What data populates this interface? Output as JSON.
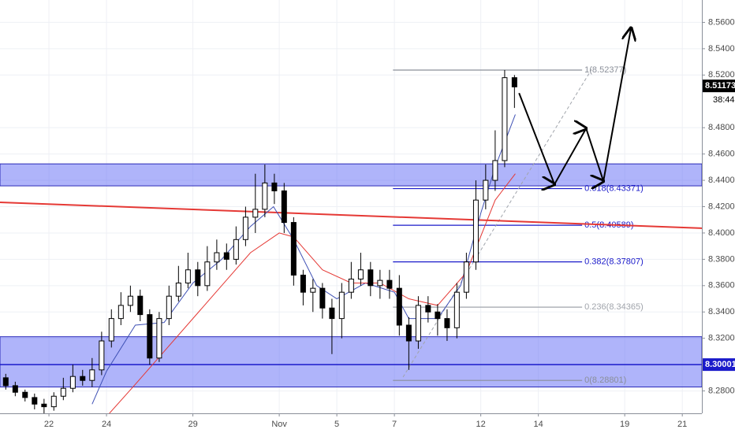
{
  "chart_data": {
    "type": "candlestick",
    "x": [
      -1.5,
      -1.17,
      -0.83,
      -0.5,
      -0.17,
      0.17,
      0.5,
      0.83,
      1.17,
      1.5,
      1.83,
      2.17,
      2.5,
      2.83,
      3.17,
      3.5,
      3.83,
      4.17,
      4.5,
      4.83,
      5.17,
      5.5,
      5.83,
      6.17,
      6.5,
      6.83,
      7.17,
      7.5,
      7.83,
      8.17,
      8.5,
      8.83,
      9.17,
      9.5,
      9.83,
      10.17,
      10.5,
      10.83,
      11.17,
      11.5,
      11.83,
      12.17,
      12.5,
      12.83,
      13.17,
      13.5,
      13.83,
      14.17,
      14.5,
      14.83,
      15.17,
      15.5,
      15.83,
      16.17
    ],
    "open": [
      8.29,
      8.284,
      8.279,
      8.275,
      8.27,
      8.268,
      8.276,
      8.282,
      8.291,
      8.288,
      8.296,
      8.318,
      8.335,
      8.345,
      8.352,
      8.338,
      8.305,
      8.335,
      8.352,
      8.362,
      8.372,
      8.36,
      8.378,
      8.385,
      8.38,
      8.395,
      8.412,
      8.418,
      8.438,
      8.432,
      8.408,
      8.368,
      8.355,
      8.358,
      8.343,
      8.335,
      8.355,
      8.365,
      8.372,
      8.36,
      8.364,
      8.358,
      8.33,
      8.318,
      8.345,
      8.34,
      8.335,
      8.328,
      8.355,
      8.378,
      8.425,
      8.44,
      8.455,
      8.518
    ],
    "high": [
      8.293,
      8.287,
      8.281,
      8.278,
      8.274,
      8.279,
      8.29,
      8.3,
      8.296,
      8.305,
      8.325,
      8.342,
      8.355,
      8.36,
      8.357,
      8.342,
      8.34,
      8.36,
      8.375,
      8.385,
      8.378,
      8.39,
      8.395,
      8.392,
      8.405,
      8.42,
      8.445,
      8.452,
      8.445,
      8.438,
      8.412,
      8.372,
      8.365,
      8.362,
      8.35,
      8.362,
      8.378,
      8.385,
      8.378,
      8.372,
      8.372,
      8.368,
      8.336,
      8.352,
      8.352,
      8.346,
      8.342,
      8.362,
      8.385,
      8.44,
      8.452,
      8.478,
      8.5238,
      8.52
    ],
    "low": [
      8.281,
      8.276,
      8.272,
      8.266,
      8.263,
      8.265,
      8.273,
      8.279,
      8.284,
      8.283,
      8.292,
      8.313,
      8.33,
      8.34,
      8.333,
      8.3,
      8.302,
      8.33,
      8.348,
      8.358,
      8.352,
      8.356,
      8.372,
      8.372,
      8.376,
      8.39,
      8.4,
      8.412,
      8.422,
      8.4,
      8.36,
      8.345,
      8.34,
      8.335,
      8.308,
      8.32,
      8.35,
      8.36,
      8.352,
      8.35,
      8.35,
      8.322,
      8.296,
      8.312,
      8.332,
      8.322,
      8.318,
      8.32,
      8.35,
      8.372,
      8.418,
      8.432,
      8.45,
      8.495
    ],
    "close": [
      8.284,
      8.279,
      8.275,
      8.27,
      8.268,
      8.276,
      8.282,
      8.291,
      8.288,
      8.296,
      8.318,
      8.335,
      8.345,
      8.352,
      8.338,
      8.305,
      8.335,
      8.352,
      8.362,
      8.372,
      8.36,
      8.378,
      8.385,
      8.38,
      8.395,
      8.412,
      8.418,
      8.438,
      8.432,
      8.408,
      8.368,
      8.355,
      8.358,
      8.343,
      8.335,
      8.355,
      8.365,
      8.372,
      8.36,
      8.364,
      8.358,
      8.33,
      8.318,
      8.345,
      8.34,
      8.335,
      8.328,
      8.355,
      8.378,
      8.425,
      8.44,
      8.455,
      8.518,
      8.511
    ],
    "xlim": [
      -1.7,
      22.68
    ],
    "ylim": [
      8.263,
      8.577
    ],
    "xticks": [
      {
        "value": 0,
        "label": "22"
      },
      {
        "value": 2,
        "label": "24"
      },
      {
        "value": 5,
        "label": "29"
      },
      {
        "value": 8,
        "label": "Nov"
      },
      {
        "value": 10,
        "label": "5"
      },
      {
        "value": 12,
        "label": "7"
      },
      {
        "value": 15,
        "label": "12"
      },
      {
        "value": 17,
        "label": "14"
      },
      {
        "value": 20,
        "label": "19"
      },
      {
        "value": 22,
        "label": "21"
      }
    ],
    "yticks": [
      {
        "value": 8.56,
        "label": "8.56000"
      },
      {
        "value": 8.54,
        "label": "8.54000"
      },
      {
        "value": 8.52,
        "label": "8.52000"
      },
      {
        "value": 8.48,
        "label": "8.48000"
      },
      {
        "value": 8.46,
        "label": "8.46000"
      },
      {
        "value": 8.44,
        "label": "8.44000"
      },
      {
        "value": 8.42,
        "label": "8.42000"
      },
      {
        "value": 8.4,
        "label": "8.40000"
      },
      {
        "value": 8.38,
        "label": "8.38000"
      },
      {
        "value": 8.36,
        "label": "8.36000"
      },
      {
        "value": 8.34,
        "label": "8.34000"
      },
      {
        "value": 8.32,
        "label": "8.32000"
      },
      {
        "value": 8.28,
        "label": "8.28000"
      }
    ],
    "grid": true,
    "ma_lines": [
      {
        "color": "#3f51b5",
        "x": [
          1.5,
          2,
          3,
          4,
          5,
          6,
          7,
          7.8,
          8.5,
          9.3,
          10,
          11,
          12,
          12.5,
          13.5,
          14.3,
          15,
          15.5,
          16.2
        ],
        "values": [
          8.27,
          8.295,
          8.33,
          8.332,
          8.362,
          8.38,
          8.405,
          8.42,
          8.395,
          8.36,
          8.35,
          8.362,
          8.355,
          8.335,
          8.335,
          8.36,
          8.415,
          8.45,
          8.49
        ]
      },
      {
        "color": "#e53935",
        "x": [
          2.1,
          3,
          4,
          5,
          6,
          7,
          8,
          8.5,
          9.5,
          10.5,
          11.5,
          12.5,
          13.5,
          14.5,
          15.5,
          16.2
        ],
        "values": [
          8.263,
          8.285,
          8.31,
          8.335,
          8.36,
          8.385,
          8.4,
          8.397,
          8.372,
          8.362,
          8.362,
          8.35,
          8.345,
          8.37,
          8.425,
          8.445
        ]
      }
    ],
    "zones": [
      {
        "low": 8.4358,
        "high": 8.4525
      },
      {
        "low": 8.283,
        "high": 8.3212
      }
    ],
    "trendline": {
      "color": "#e53935",
      "x": [
        -1.7,
        22.68
      ],
      "values": [
        8.4233,
        8.4036
      ]
    },
    "hline": {
      "value": 8.30001,
      "label": "8.30001",
      "color": "#1a1aca"
    },
    "last_price": {
      "value": 8.51173,
      "label": "8.51173"
    },
    "countdown": "38:44",
    "fib": {
      "x": [
        11.95,
        18.52
      ],
      "levels": [
        {
          "label": "1(8.52377)",
          "value": 8.52377,
          "color": "#8a8f99"
        },
        {
          "label": "0.618(8.43371)",
          "value": 8.43371,
          "color": "#1a1aca"
        },
        {
          "label": "0.5(8.40589)",
          "value": 8.40589,
          "color": "#1a1aca"
        },
        {
          "label": "0.382(8.37807)",
          "value": 8.37807,
          "color": "#1a1aca"
        },
        {
          "label": "0.236(8.34365)",
          "value": 8.34365,
          "color": "#a0a4ab"
        },
        {
          "label": "0(8.28801)",
          "value": 8.28801,
          "color": "#8a8f99"
        }
      ]
    },
    "fib_diagonal": {
      "x": [
        12.3,
        18.85
      ],
      "values": [
        8.2905,
        8.5243
      ]
    },
    "projection": {
      "x": [
        16.33,
        17.56,
        18.66,
        19.26,
        20.22
      ],
      "values": [
        8.5063,
        8.437,
        8.4794,
        8.4394,
        8.5558
      ]
    }
  }
}
